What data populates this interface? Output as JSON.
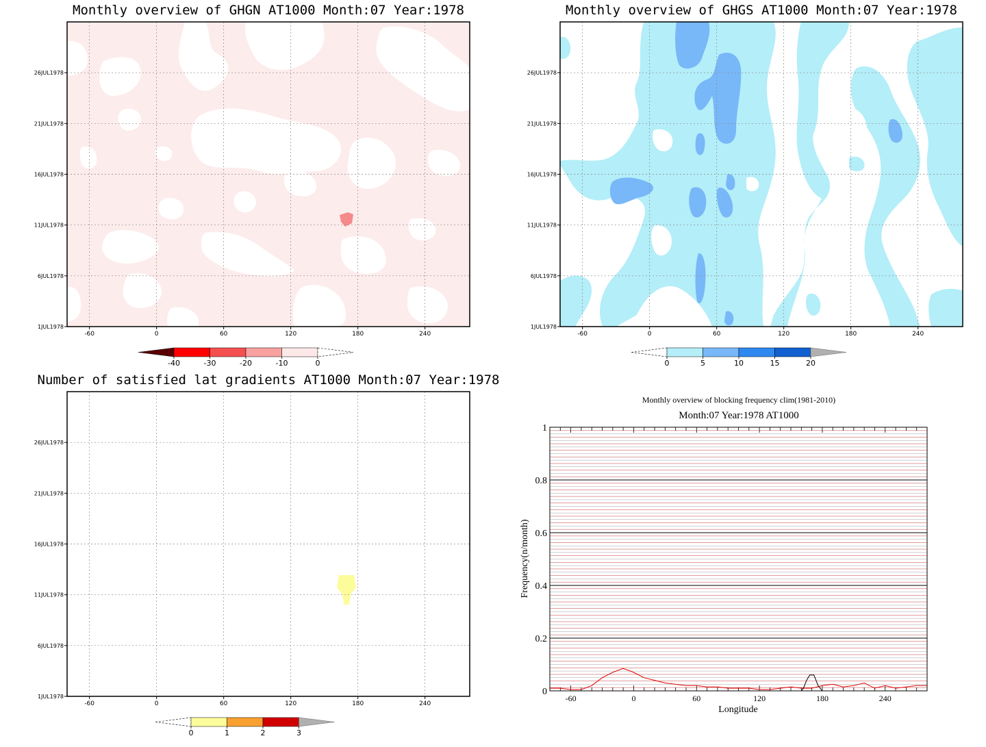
{
  "chart_data": [
    {
      "type": "heatmap",
      "title": "Monthly overview of GHGN AT1000 Month:07 Year:1978",
      "x_ticks": [
        "-60",
        "0",
        "60",
        "120",
        "180",
        "240"
      ],
      "x_tick_values": [
        -60,
        0,
        60,
        120,
        180,
        240
      ],
      "xlim": [
        -80,
        280
      ],
      "y_ticks": [
        "1JUL1978",
        "6JUL1978",
        "11JUL1978",
        "16JUL1978",
        "21JUL1978",
        "26JUL1978"
      ],
      "y_tick_values": [
        1,
        6,
        11,
        16,
        21,
        26
      ],
      "ylim": [
        1,
        31
      ],
      "colorbar": {
        "labels": [
          "-40",
          "-30",
          "-20",
          "-10",
          "0"
        ],
        "colors": [
          "#5a0000",
          "#ff0000",
          "#f45050",
          "#f9a0a0",
          "#fde8e8",
          "#ffffff"
        ]
      },
      "grid": true
    },
    {
      "type": "heatmap",
      "title": "Monthly overview of GHGS AT1000 Month:07 Year:1978",
      "x_ticks": [
        "-60",
        "0",
        "60",
        "120",
        "180",
        "240"
      ],
      "x_tick_values": [
        -60,
        0,
        60,
        120,
        180,
        240
      ],
      "xlim": [
        -80,
        280
      ],
      "y_ticks": [
        "1JUL1978",
        "6JUL1978",
        "11JUL1978",
        "16JUL1978",
        "21JUL1978",
        "26JUL1978"
      ],
      "y_tick_values": [
        1,
        6,
        11,
        16,
        21,
        26
      ],
      "ylim": [
        1,
        31
      ],
      "colorbar": {
        "labels": [
          "0",
          "5",
          "10",
          "15",
          "20"
        ],
        "colors": [
          "#ffffff",
          "#b4eef8",
          "#78b8f8",
          "#2e88f0",
          "#1060d0",
          "#b0b0b0"
        ]
      },
      "grid": true
    },
    {
      "type": "heatmap",
      "title": "Number of satisfied lat gradients AT1000 Month:07 Year:1978",
      "x_ticks": [
        "-60",
        "0",
        "60",
        "120",
        "180",
        "240"
      ],
      "x_tick_values": [
        -60,
        0,
        60,
        120,
        180,
        240
      ],
      "xlim": [
        -80,
        280
      ],
      "y_ticks": [
        "1JUL1978",
        "6JUL1978",
        "11JUL1978",
        "16JUL1978",
        "21JUL1978",
        "26JUL1978"
      ],
      "y_tick_values": [
        1,
        6,
        11,
        16,
        21,
        26
      ],
      "ylim": [
        1,
        31
      ],
      "colorbar": {
        "labels": [
          "0",
          "1",
          "2",
          "3"
        ],
        "colors": [
          "#ffffff",
          "#fdfc9a",
          "#f8a030",
          "#d00000",
          "#b0b0b0"
        ]
      },
      "grid": true
    },
    {
      "type": "line",
      "title": "Monthly overview of blocking frequency clim(1981-2010)",
      "subtitle": "Month:07 Year:1978  AT1000",
      "xlabel": "Longitude",
      "ylabel": "Frequency(n/month)",
      "x_ticks": [
        "-60",
        "0",
        "60",
        "120",
        "180",
        "240"
      ],
      "x_tick_values": [
        -60,
        0,
        60,
        120,
        180,
        240
      ],
      "y_ticks": [
        "0",
        "0.2",
        "0.4",
        "0.6",
        "0.8",
        "1"
      ],
      "y_tick_values": [
        0,
        0.2,
        0.4,
        0.6,
        0.8,
        1
      ],
      "xlim": [
        -80,
        280
      ],
      "ylim": [
        0,
        1
      ],
      "series": [
        {
          "color": "#e00000",
          "x": [
            -80,
            -70,
            -60,
            -50,
            -40,
            -30,
            -20,
            -10,
            0,
            10,
            20,
            30,
            40,
            50,
            60,
            70,
            80,
            90,
            100,
            110,
            120,
            130,
            140,
            150,
            160,
            170,
            180,
            190,
            200,
            210,
            220,
            230,
            240,
            250,
            260,
            270,
            280
          ],
          "y": [
            0.01,
            0.01,
            0.005,
            0.005,
            0.02,
            0.05,
            0.07,
            0.085,
            0.07,
            0.05,
            0.04,
            0.03,
            0.025,
            0.02,
            0.02,
            0.015,
            0.015,
            0.01,
            0.01,
            0.01,
            0.005,
            0.005,
            0.01,
            0.015,
            0.01,
            0.01,
            0.02,
            0.025,
            0.015,
            0.02,
            0.03,
            0.01,
            0.02,
            0.01,
            0.015,
            0.02,
            0.02
          ]
        },
        {
          "color": "#000000",
          "x": [
            -80,
            -70,
            -60,
            -50,
            -40,
            -30,
            -20,
            -10,
            0,
            10,
            20,
            30,
            40,
            50,
            60,
            70,
            80,
            90,
            100,
            110,
            120,
            130,
            140,
            150,
            160,
            162,
            165,
            168,
            172,
            176,
            180,
            190,
            200,
            210,
            220,
            230,
            240,
            250,
            260,
            270,
            280
          ],
          "y": [
            0,
            0,
            0,
            0,
            0,
            0,
            0,
            0,
            0,
            0,
            0,
            0,
            0,
            0,
            0,
            0,
            0,
            0,
            0,
            0,
            0,
            0,
            0,
            0,
            0,
            0.01,
            0.04,
            0.06,
            0.06,
            0.02,
            0,
            0,
            0,
            0,
            0,
            0,
            0,
            0,
            0,
            0,
            0
          ]
        }
      ],
      "grid": true
    }
  ]
}
